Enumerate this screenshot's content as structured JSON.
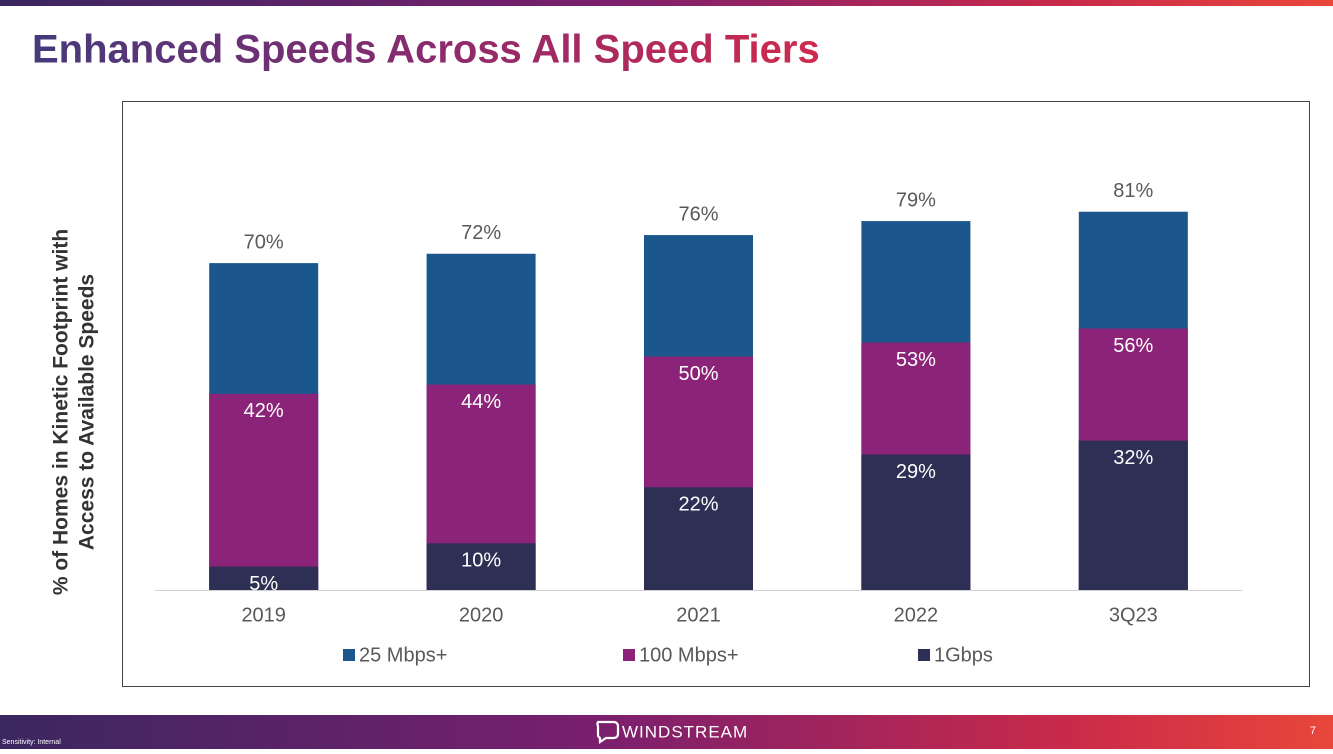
{
  "chart_data": {
    "type": "bar",
    "title": "Enhanced Speeds Across All Speed Tiers",
    "y_label": [
      "% of Homes in Kinetic Footprint with",
      "Access to Available Speeds"
    ],
    "categories": [
      "2019",
      "2020",
      "2021",
      "2022",
      "3Q23"
    ],
    "series": [
      {
        "name": "25 Mbps+",
        "color": "#1b578c",
        "values": [
          70,
          72,
          76,
          79,
          81
        ],
        "value_labels": [
          "70%",
          "72%",
          "76%",
          "79%",
          "81%"
        ]
      },
      {
        "name": "100 Mbps+",
        "color": "#8b2479",
        "values": [
          42,
          44,
          50,
          53,
          56
        ],
        "value_labels": [
          "42%",
          "44%",
          "50%",
          "53%",
          "56%"
        ]
      },
      {
        "name": "1Gbps",
        "color": "#2e2f55",
        "values": [
          5,
          10,
          22,
          29,
          32
        ],
        "value_labels": [
          "5%",
          "10%",
          "22%",
          "29%",
          "32%"
        ]
      }
    ],
    "legend": "bottom"
  },
  "footer": {
    "brand": "WINDSTREAM",
    "page": "7",
    "sensitivity": "Sensitivity: Internal"
  }
}
